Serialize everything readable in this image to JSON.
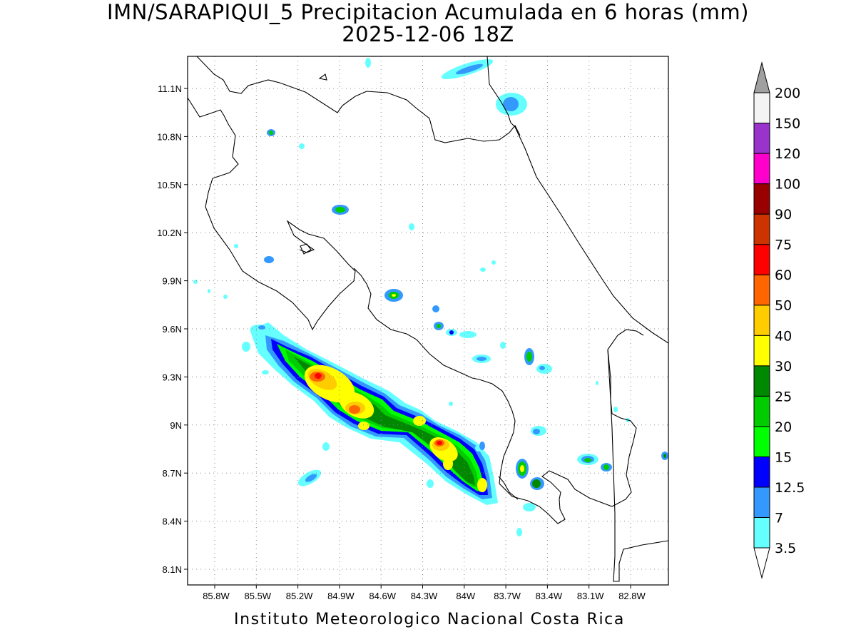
{
  "title": {
    "line1": "IMN/SARAPIQUI_5 Precipitacion Acumulada en 6 horas (mm)",
    "line2": "2025-12-06 18Z"
  },
  "footer": "Instituto Meteorologico Nacional Costa Rica",
  "axes": {
    "lat_labels": [
      "11.1N",
      "10.8N",
      "10.5N",
      "10.2N",
      "9.9N",
      "9.6N",
      "9.3N",
      "9N",
      "8.7N",
      "8.4N",
      "8.1N"
    ],
    "lon_labels": [
      "85.8W",
      "85.5W",
      "85.2W",
      "84.9W",
      "84.6W",
      "84.3W",
      "84W",
      "83.7W",
      "83.4W",
      "83.1W",
      "82.8W"
    ],
    "grid": "dotted"
  },
  "colorbar": {
    "levels": [
      "3.5",
      "7",
      "12.5",
      "15",
      "20",
      "25",
      "30",
      "40",
      "50",
      "60",
      "75",
      "90",
      "100",
      "120",
      "150",
      "200"
    ],
    "colors": [
      "#66ffff",
      "#3399ff",
      "#0000ff",
      "#00ff00",
      "#00cc00",
      "#008800",
      "#ffff00",
      "#ffcc00",
      "#ff6600",
      "#ff0000",
      "#cc3300",
      "#990000",
      "#ff00cc",
      "#9933cc",
      "#f4f4f4"
    ],
    "over_color": "#a0a0a0",
    "under_color": "#ffffff"
  }
}
